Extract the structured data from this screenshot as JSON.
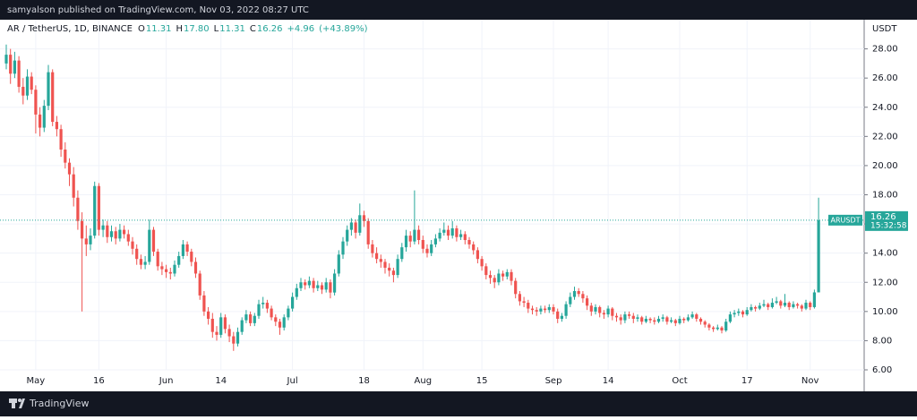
{
  "header": "samyalson published on TradingView.com, Nov 03, 2022 08:27 UTC",
  "footer": "TradingView",
  "chart_data": {
    "type": "candlestick",
    "symbol": "AR / TetherUS, 1D, BINANCE",
    "legend": {
      "o_label": "O",
      "open": "11.31",
      "h_label": "H",
      "high": "17.80",
      "l_label": "L",
      "low": "11.31",
      "c_label": "C",
      "close": "16.26",
      "change": "+4.96",
      "change_pct": "(+43.89%)"
    },
    "axis_unit": "USDT",
    "last_price_label": {
      "ticker": "ARUSDT",
      "countdown": "15:32:58"
    },
    "up_color": "#26a69a",
    "down_color": "#ef5350",
    "grid": true,
    "ylim": [
      6,
      30
    ],
    "yticks": [
      {
        "value": 6,
        "label": "6.00"
      },
      {
        "value": 8,
        "label": "8.00"
      },
      {
        "value": 10,
        "label": "10.00"
      },
      {
        "value": 12,
        "label": "12.00"
      },
      {
        "value": 14,
        "label": "14.00"
      },
      {
        "value": 16,
        "label": "16.00"
      },
      {
        "value": 18,
        "label": "18.00"
      },
      {
        "value": 20,
        "label": "20.00"
      },
      {
        "value": 22,
        "label": "22.00"
      },
      {
        "value": 24,
        "label": "24.00"
      },
      {
        "value": 26,
        "label": "26.00"
      },
      {
        "value": 28,
        "label": "28.00"
      }
    ],
    "categories": [
      null,
      null,
      null,
      null,
      null,
      null,
      null,
      "May",
      null,
      null,
      null,
      null,
      null,
      null,
      null,
      null,
      null,
      null,
      null,
      null,
      null,
      null,
      "16",
      null,
      null,
      null,
      null,
      null,
      null,
      null,
      null,
      null,
      null,
      null,
      null,
      null,
      null,
      null,
      "Jun",
      null,
      null,
      null,
      null,
      null,
      null,
      null,
      null,
      null,
      null,
      null,
      null,
      "14",
      null,
      null,
      null,
      null,
      null,
      null,
      null,
      null,
      null,
      null,
      null,
      null,
      null,
      null,
      null,
      null,
      "Jul",
      null,
      null,
      null,
      null,
      null,
      null,
      null,
      null,
      null,
      null,
      null,
      null,
      null,
      null,
      null,
      null,
      "18",
      null,
      null,
      null,
      null,
      null,
      null,
      null,
      null,
      null,
      null,
      null,
      null,
      null,
      "Aug",
      null,
      null,
      null,
      null,
      null,
      null,
      null,
      null,
      null,
      null,
      null,
      null,
      null,
      "15",
      null,
      null,
      null,
      null,
      null,
      null,
      null,
      null,
      null,
      null,
      null,
      null,
      null,
      null,
      null,
      null,
      "Sep",
      null,
      null,
      null,
      null,
      null,
      null,
      null,
      null,
      null,
      null,
      null,
      null,
      "14",
      null,
      null,
      null,
      null,
      null,
      null,
      null,
      null,
      null,
      null,
      null,
      null,
      null,
      null,
      null,
      null,
      "Oct",
      null,
      null,
      null,
      null,
      null,
      null,
      null,
      null,
      null,
      null,
      null,
      null,
      null,
      null,
      null,
      "17",
      null,
      null,
      null,
      null,
      null,
      null,
      null,
      null,
      null,
      null,
      null,
      null,
      null,
      null,
      "Nov",
      null,
      null
    ],
    "candles": [
      [
        27.0,
        28.3,
        26.6,
        27.6
      ],
      [
        27.6,
        28.0,
        25.6,
        26.3
      ],
      [
        26.3,
        27.8,
        26.0,
        27.2
      ],
      [
        27.2,
        27.5,
        25.0,
        25.4
      ],
      [
        25.4,
        26.0,
        24.2,
        24.8
      ],
      [
        24.8,
        26.6,
        24.5,
        26.1
      ],
      [
        26.1,
        26.4,
        24.9,
        25.2
      ],
      [
        25.2,
        25.5,
        22.2,
        23.5
      ],
      [
        23.5,
        24.0,
        22.0,
        22.6
      ],
      [
        22.6,
        24.5,
        22.3,
        24.1
      ],
      [
        24.1,
        26.9,
        23.8,
        26.4
      ],
      [
        26.4,
        26.6,
        22.7,
        23.0
      ],
      [
        23.0,
        23.4,
        22.0,
        22.5
      ],
      [
        22.5,
        22.8,
        20.6,
        21.1
      ],
      [
        21.1,
        21.6,
        19.8,
        20.2
      ],
      [
        20.2,
        20.5,
        18.6,
        19.4
      ],
      [
        19.4,
        19.9,
        17.2,
        17.8
      ],
      [
        17.8,
        18.3,
        15.6,
        16.2
      ],
      [
        16.2,
        16.8,
        10.0,
        15.0
      ],
      [
        15.0,
        15.9,
        13.8,
        14.6
      ],
      [
        14.6,
        15.7,
        14.2,
        15.2
      ],
      [
        15.2,
        18.9,
        15.0,
        18.6
      ],
      [
        18.6,
        18.8,
        15.2,
        15.6
      ],
      [
        15.6,
        16.3,
        15.1,
        15.9
      ],
      [
        15.9,
        16.2,
        14.7,
        15.1
      ],
      [
        15.1,
        15.9,
        14.8,
        15.5
      ],
      [
        15.5,
        15.8,
        14.6,
        15.0
      ],
      [
        15.0,
        16.0,
        14.8,
        15.6
      ],
      [
        15.6,
        15.9,
        15.0,
        15.3
      ],
      [
        15.3,
        15.6,
        14.5,
        14.8
      ],
      [
        14.8,
        15.1,
        13.9,
        14.3
      ],
      [
        14.3,
        14.6,
        13.2,
        13.6
      ],
      [
        13.6,
        13.9,
        12.9,
        13.2
      ],
      [
        13.2,
        13.8,
        12.9,
        13.4
      ],
      [
        13.4,
        16.3,
        13.2,
        15.6
      ],
      [
        15.6,
        15.8,
        13.8,
        14.1
      ],
      [
        14.1,
        14.3,
        12.8,
        13.1
      ],
      [
        13.1,
        13.4,
        12.5,
        12.9
      ],
      [
        12.9,
        13.2,
        12.3,
        12.7
      ],
      [
        12.7,
        13.0,
        12.2,
        12.6
      ],
      [
        12.6,
        13.5,
        12.4,
        13.2
      ],
      [
        13.2,
        14.1,
        13.0,
        13.8
      ],
      [
        13.8,
        14.9,
        13.6,
        14.6
      ],
      [
        14.6,
        14.8,
        13.8,
        14.1
      ],
      [
        14.1,
        14.3,
        13.1,
        13.4
      ],
      [
        13.4,
        13.7,
        12.3,
        12.6
      ],
      [
        12.6,
        12.8,
        10.8,
        11.1
      ],
      [
        11.1,
        11.4,
        9.7,
        10.0
      ],
      [
        10.0,
        10.3,
        9.1,
        9.5
      ],
      [
        9.5,
        9.9,
        8.2,
        8.6
      ],
      [
        8.6,
        9.0,
        8.0,
        8.4
      ],
      [
        8.4,
        9.9,
        8.2,
        9.6
      ],
      [
        9.6,
        9.8,
        8.5,
        8.8
      ],
      [
        8.8,
        9.1,
        7.9,
        8.3
      ],
      [
        8.3,
        8.6,
        7.3,
        7.8
      ],
      [
        7.8,
        8.9,
        7.6,
        8.6
      ],
      [
        8.6,
        9.6,
        8.4,
        9.4
      ],
      [
        9.4,
        10.1,
        9.2,
        9.8
      ],
      [
        9.8,
        10.0,
        9.0,
        9.2
      ],
      [
        9.2,
        9.9,
        9.0,
        9.7
      ],
      [
        9.7,
        10.8,
        9.5,
        10.5
      ],
      [
        10.5,
        11.0,
        10.2,
        10.6
      ],
      [
        10.6,
        10.8,
        9.9,
        10.2
      ],
      [
        10.2,
        10.4,
        9.4,
        9.6
      ],
      [
        9.6,
        9.8,
        9.0,
        9.3
      ],
      [
        9.3,
        9.5,
        8.4,
        8.9
      ],
      [
        8.9,
        9.8,
        8.7,
        9.6
      ],
      [
        9.6,
        10.4,
        9.4,
        10.2
      ],
      [
        10.2,
        11.3,
        10.0,
        11.0
      ],
      [
        11.0,
        11.9,
        10.8,
        11.6
      ],
      [
        11.6,
        12.3,
        11.4,
        12.0
      ],
      [
        12.0,
        12.2,
        11.5,
        11.8
      ],
      [
        11.8,
        12.4,
        11.6,
        12.1
      ],
      [
        12.1,
        12.3,
        11.3,
        11.6
      ],
      [
        11.6,
        12.1,
        11.4,
        11.8
      ],
      [
        11.8,
        12.0,
        11.2,
        11.5
      ],
      [
        11.5,
        12.3,
        11.3,
        12.0
      ],
      [
        12.0,
        12.2,
        10.9,
        11.3
      ],
      [
        11.3,
        12.9,
        11.1,
        12.6
      ],
      [
        12.6,
        14.2,
        12.4,
        13.9
      ],
      [
        13.9,
        15.1,
        13.6,
        14.8
      ],
      [
        14.8,
        15.9,
        14.5,
        15.6
      ],
      [
        15.6,
        16.4,
        15.2,
        16.1
      ],
      [
        16.1,
        16.3,
        15.0,
        15.4
      ],
      [
        15.4,
        17.4,
        15.2,
        16.6
      ],
      [
        16.6,
        16.9,
        15.8,
        16.2
      ],
      [
        16.2,
        16.4,
        14.3,
        14.6
      ],
      [
        14.6,
        14.9,
        13.7,
        14.0
      ],
      [
        14.0,
        14.4,
        13.3,
        13.6
      ],
      [
        13.6,
        13.9,
        13.0,
        13.4
      ],
      [
        13.4,
        13.6,
        12.6,
        13.0
      ],
      [
        13.0,
        13.3,
        12.4,
        12.8
      ],
      [
        12.8,
        13.0,
        12.0,
        12.5
      ],
      [
        12.5,
        13.9,
        12.3,
        13.6
      ],
      [
        13.6,
        14.7,
        13.4,
        14.4
      ],
      [
        14.4,
        15.6,
        14.1,
        15.2
      ],
      [
        15.2,
        15.5,
        14.4,
        14.8
      ],
      [
        14.8,
        18.3,
        14.6,
        15.6
      ],
      [
        15.6,
        15.9,
        14.6,
        14.9
      ],
      [
        14.9,
        15.2,
        14.0,
        14.3
      ],
      [
        14.3,
        14.6,
        13.7,
        14.0
      ],
      [
        14.0,
        14.9,
        13.8,
        14.6
      ],
      [
        14.6,
        15.3,
        14.4,
        15.0
      ],
      [
        15.0,
        15.7,
        14.8,
        15.4
      ],
      [
        15.4,
        16.1,
        15.2,
        15.6
      ],
      [
        15.6,
        15.9,
        14.9,
        15.2
      ],
      [
        15.2,
        16.2,
        15.0,
        15.7
      ],
      [
        15.7,
        15.9,
        14.8,
        15.1
      ],
      [
        15.1,
        15.6,
        14.9,
        15.3
      ],
      [
        15.3,
        15.5,
        14.6,
        14.9
      ],
      [
        14.9,
        15.1,
        14.3,
        14.6
      ],
      [
        14.6,
        14.8,
        13.9,
        14.2
      ],
      [
        14.2,
        14.4,
        13.3,
        13.6
      ],
      [
        13.6,
        13.8,
        12.8,
        13.1
      ],
      [
        13.1,
        13.3,
        12.2,
        12.5
      ],
      [
        12.5,
        12.8,
        11.9,
        12.3
      ],
      [
        12.3,
        12.5,
        11.6,
        12.0
      ],
      [
        12.0,
        12.9,
        11.8,
        12.6
      ],
      [
        12.6,
        12.8,
        12.1,
        12.4
      ],
      [
        12.4,
        12.9,
        12.2,
        12.7
      ],
      [
        12.7,
        12.9,
        11.8,
        12.1
      ],
      [
        12.1,
        12.3,
        10.9,
        11.2
      ],
      [
        11.2,
        11.4,
        10.4,
        10.7
      ],
      [
        10.7,
        11.0,
        10.3,
        10.6
      ],
      [
        10.6,
        10.8,
        9.9,
        10.2
      ],
      [
        10.2,
        10.4,
        9.8,
        10.1
      ],
      [
        10.1,
        10.3,
        9.7,
        10.0
      ],
      [
        10.0,
        10.4,
        9.8,
        10.2
      ],
      [
        10.2,
        10.4,
        9.9,
        10.1
      ],
      [
        10.1,
        10.5,
        9.9,
        10.3
      ],
      [
        10.3,
        10.5,
        9.8,
        10.0
      ],
      [
        10.0,
        10.2,
        9.2,
        9.5
      ],
      [
        9.5,
        9.9,
        9.3,
        9.7
      ],
      [
        9.7,
        10.7,
        9.5,
        10.5
      ],
      [
        10.5,
        11.3,
        10.3,
        11.0
      ],
      [
        11.0,
        11.7,
        10.8,
        11.4
      ],
      [
        11.4,
        11.6,
        11.0,
        11.2
      ],
      [
        11.2,
        11.4,
        10.6,
        10.9
      ],
      [
        10.9,
        11.1,
        10.1,
        10.4
      ],
      [
        10.4,
        10.6,
        9.7,
        10.0
      ],
      [
        10.0,
        10.5,
        9.8,
        10.3
      ],
      [
        10.3,
        10.4,
        9.6,
        9.9
      ],
      [
        9.9,
        10.1,
        9.5,
        9.8
      ],
      [
        9.8,
        10.4,
        9.6,
        10.2
      ],
      [
        10.2,
        10.3,
        9.4,
        9.7
      ],
      [
        9.7,
        9.9,
        9.3,
        9.6
      ],
      [
        9.6,
        9.8,
        9.1,
        9.4
      ],
      [
        9.4,
        10.0,
        9.2,
        9.8
      ],
      [
        9.8,
        10.0,
        9.5,
        9.7
      ],
      [
        9.7,
        9.9,
        9.2,
        9.5
      ],
      [
        9.5,
        9.8,
        9.3,
        9.6
      ],
      [
        9.6,
        9.7,
        9.1,
        9.3
      ],
      [
        9.3,
        9.7,
        9.2,
        9.5
      ],
      [
        9.5,
        9.6,
        9.2,
        9.4
      ],
      [
        9.4,
        9.6,
        9.1,
        9.3
      ],
      [
        9.3,
        9.7,
        9.2,
        9.5
      ],
      [
        9.5,
        9.8,
        9.3,
        9.6
      ],
      [
        9.6,
        9.7,
        9.1,
        9.3
      ],
      [
        9.3,
        9.6,
        9.2,
        9.4
      ],
      [
        9.4,
        9.5,
        9.0,
        9.2
      ],
      [
        9.2,
        9.7,
        9.1,
        9.5
      ],
      [
        9.5,
        9.6,
        9.2,
        9.4
      ],
      [
        9.4,
        9.8,
        9.3,
        9.6
      ],
      [
        9.6,
        10.0,
        9.5,
        9.8
      ],
      [
        9.8,
        9.9,
        9.3,
        9.5
      ],
      [
        9.5,
        9.6,
        9.1,
        9.3
      ],
      [
        9.3,
        9.4,
        8.9,
        9.1
      ],
      [
        9.1,
        9.2,
        8.7,
        8.9
      ],
      [
        8.9,
        9.0,
        8.6,
        8.8
      ],
      [
        8.8,
        9.1,
        8.7,
        8.9
      ],
      [
        8.9,
        9.0,
        8.5,
        8.7
      ],
      [
        8.7,
        9.5,
        8.6,
        9.3
      ],
      [
        9.3,
        10.0,
        9.2,
        9.8
      ],
      [
        9.8,
        10.1,
        9.6,
        9.9
      ],
      [
        9.9,
        10.2,
        9.7,
        10.0
      ],
      [
        10.0,
        10.1,
        9.6,
        9.8
      ],
      [
        9.8,
        10.3,
        9.7,
        10.1
      ],
      [
        10.1,
        10.5,
        10.0,
        10.3
      ],
      [
        10.3,
        10.4,
        10.0,
        10.2
      ],
      [
        10.2,
        10.6,
        10.1,
        10.4
      ],
      [
        10.4,
        10.8,
        10.3,
        10.5
      ],
      [
        10.5,
        10.6,
        10.1,
        10.3
      ],
      [
        10.3,
        10.9,
        10.2,
        10.6
      ],
      [
        10.6,
        11.0,
        10.5,
        10.7
      ],
      [
        10.7,
        10.8,
        10.2,
        10.4
      ],
      [
        10.4,
        11.2,
        10.3,
        10.6
      ],
      [
        10.6,
        10.7,
        10.1,
        10.3
      ],
      [
        10.3,
        10.7,
        10.2,
        10.5
      ],
      [
        10.5,
        10.6,
        10.2,
        10.4
      ],
      [
        10.4,
        10.5,
        10.0,
        10.2
      ],
      [
        10.2,
        10.8,
        10.1,
        10.6
      ],
      [
        10.6,
        10.7,
        10.1,
        10.3
      ],
      [
        10.3,
        11.5,
        10.2,
        11.31
      ],
      [
        11.31,
        17.8,
        11.31,
        16.26
      ]
    ]
  }
}
